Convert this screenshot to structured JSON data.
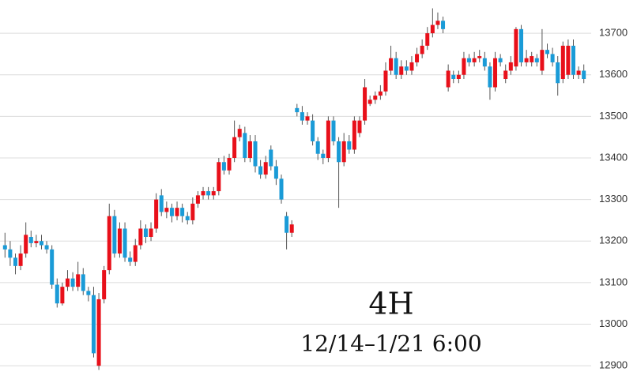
{
  "chart_data": {
    "type": "candlestick",
    "title": "4H",
    "subtitle": "12/14–1/21 6:00",
    "up_color": "#e8101a",
    "down_color": "#1a9bd7",
    "grid": true,
    "ylim": [
      12868,
      13780
    ],
    "yticks": [
      12900,
      13000,
      13100,
      13200,
      13300,
      13400,
      13500,
      13600,
      13700
    ],
    "open": [
      13190,
      13180,
      13160,
      13140,
      13170,
      13210,
      13195,
      13200,
      13190,
      13180,
      13095,
      13050,
      13090,
      13110,
      13090,
      13120,
      13080,
      13070,
      12900,
      13060,
      13130,
      13260,
      13170,
      13230,
      13160,
      13150,
      13190,
      13230,
      13210,
      13230,
      13310,
      13270,
      13280,
      13260,
      13280,
      13260,
      13250,
      13290,
      13310,
      13320,
      13310,
      13320,
      13390,
      13370,
      13400,
      13450,
      13460,
      13400,
      13440,
      13380,
      13360,
      13420,
      13380,
      13350,
      13260,
      13220,
      13520,
      13510,
      13490,
      13490,
      13440,
      13410,
      13400,
      13490,
      13440,
      13390,
      13440,
      13420,
      13460,
      13490,
      13530,
      13540,
      13550,
      13560,
      13610,
      13640,
      13600,
      13620,
      13610,
      13630,
      13650,
      13670,
      13700,
      13720,
      13730,
      13570,
      13600,
      13590,
      13600,
      13640,
      13630,
      13640,
      13640,
      13620,
      13570,
      13640,
      13590,
      13610,
      13620,
      13710,
      13630,
      13630,
      13640,
      13610,
      13660,
      13650,
      13630,
      13590,
      13600,
      13670,
      13600,
      13610
    ],
    "high": [
      13220,
      13200,
      13170,
      13190,
      13245,
      13225,
      13215,
      13215,
      13200,
      13190,
      13110,
      13100,
      13130,
      13125,
      13150,
      13135,
      13090,
      13090,
      13075,
      13140,
      13290,
      13275,
      13245,
      13245,
      13175,
      13205,
      13250,
      13240,
      13245,
      13315,
      13325,
      13295,
      13290,
      13295,
      13290,
      13270,
      13305,
      13320,
      13330,
      13330,
      13330,
      13400,
      13405,
      13410,
      13490,
      13480,
      13475,
      13455,
      13455,
      13395,
      13405,
      13430,
      13395,
      13360,
      13270,
      13250,
      13530,
      13525,
      13510,
      13505,
      13450,
      13420,
      13500,
      13500,
      13450,
      13460,
      13455,
      13500,
      13500,
      13590,
      13550,
      13560,
      13575,
      13630,
      13670,
      13655,
      13635,
      13635,
      13645,
      13665,
      13685,
      13715,
      13760,
      13750,
      13740,
      13625,
      13610,
      13610,
      13655,
      13650,
      13655,
      13660,
      13655,
      13630,
      13655,
      13650,
      13625,
      13645,
      13715,
      13720,
      13660,
      13655,
      13650,
      13710,
      13675,
      13665,
      13645,
      13680,
      13685,
      13685,
      13620,
      13625
    ],
    "low": [
      13160,
      13140,
      13120,
      13130,
      13160,
      13185,
      13185,
      13180,
      13170,
      13085,
      13040,
      13045,
      13080,
      13080,
      13080,
      13070,
      13055,
      12920,
      12890,
      13050,
      13120,
      13160,
      13160,
      13150,
      13140,
      13140,
      13180,
      13195,
      13200,
      13220,
      13260,
      13255,
      13245,
      13250,
      13245,
      13240,
      13240,
      13280,
      13300,
      13300,
      13300,
      13310,
      13360,
      13360,
      13390,
      13440,
      13390,
      13390,
      13365,
      13350,
      13350,
      13370,
      13335,
      13290,
      13180,
      13210,
      13500,
      13480,
      13480,
      13430,
      13395,
      13385,
      13390,
      13430,
      13280,
      13380,
      13410,
      13410,
      13450,
      13480,
      13525,
      13530,
      13540,
      13550,
      13600,
      13590,
      13590,
      13600,
      13600,
      13620,
      13640,
      13660,
      13690,
      13710,
      13700,
      13560,
      13580,
      13580,
      13590,
      13620,
      13620,
      13630,
      13610,
      13540,
      13560,
      13620,
      13580,
      13600,
      13610,
      13620,
      13620,
      13620,
      13620,
      13600,
      13640,
      13620,
      13550,
      13580,
      13590,
      13590,
      13590,
      13580
    ],
    "close": [
      13180,
      13160,
      13140,
      13170,
      13215,
      13195,
      13200,
      13190,
      13180,
      13095,
      13050,
      13090,
      13110,
      13090,
      13120,
      13080,
      13070,
      12930,
      13060,
      13130,
      13260,
      13170,
      13230,
      13160,
      13150,
      13190,
      13230,
      13210,
      13230,
      13300,
      13270,
      13280,
      13260,
      13280,
      13260,
      13250,
      13290,
      13310,
      13320,
      13310,
      13320,
      13390,
      13370,
      13400,
      13450,
      13470,
      13400,
      13440,
      13380,
      13360,
      13390,
      13380,
      13350,
      13300,
      13220,
      13240,
      13510,
      13490,
      13500,
      13440,
      13410,
      13400,
      13490,
      13440,
      13390,
      13440,
      13420,
      13490,
      13490,
      13570,
      13540,
      13550,
      13560,
      13610,
      13640,
      13600,
      13620,
      13610,
      13630,
      13650,
      13670,
      13700,
      13720,
      13730,
      13710,
      13610,
      13590,
      13600,
      13640,
      13630,
      13640,
      13645,
      13620,
      13570,
      13640,
      13630,
      13610,
      13630,
      13710,
      13630,
      13640,
      13645,
      13630,
      13660,
      13650,
      13630,
      13580,
      13670,
      13670,
      13600,
      13610,
      13590
    ]
  }
}
